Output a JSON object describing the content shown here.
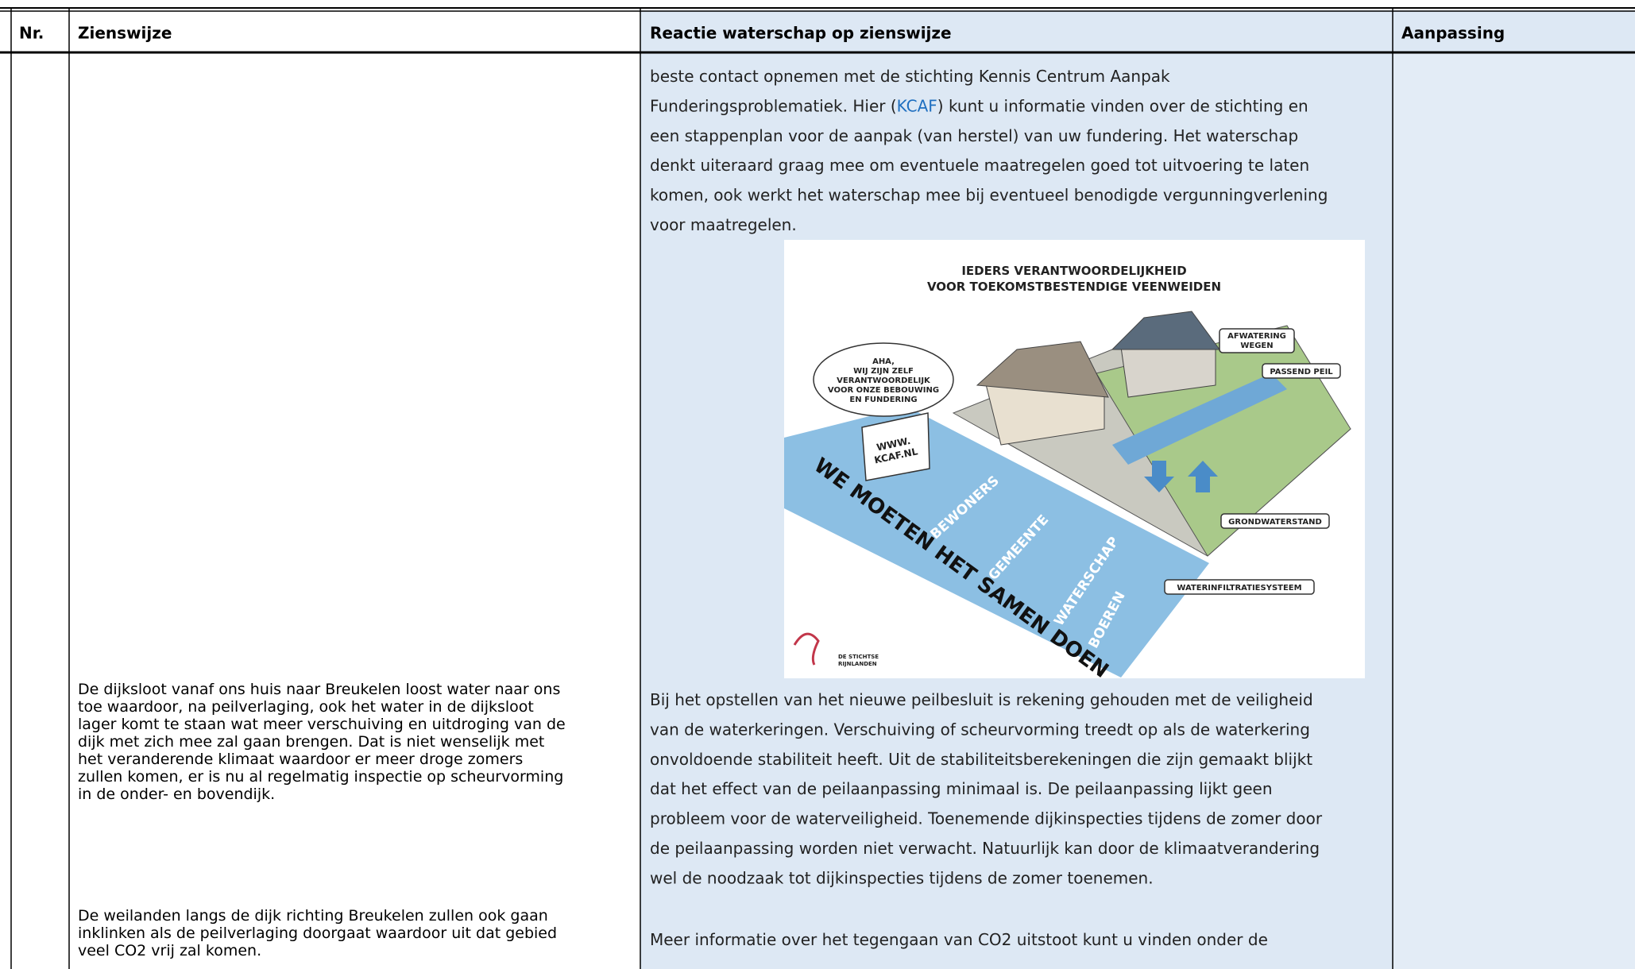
{
  "table": {
    "headers": [
      "Nr.",
      "Zienswijze",
      "Reactie waterschap op zienswijze",
      "Aanpassing"
    ],
    "row": {
      "zienswijze": [
        {
          "lines": [
            "De dijksloot vanaf ons huis naar Breukelen loost water naar ons",
            "toe waardoor, na peilverlaging, ook het water in de dijksloot",
            "lager komt te staan wat meer verschuiving en uitdroging van de",
            "dijk met zich mee zal gaan brengen. Dat is niet wenselijk met",
            "het veranderende klimaat waardoor er meer droge zomers",
            "zullen komen, er is nu al regelmatig inspectie op scheurvorming",
            "in de onder- en bovendijk."
          ]
        },
        {
          "lines": [
            "De weilanden langs de dijk richting Breukelen zullen ook gaan",
            "inklinken als de peilverlaging doorgaat waardoor uit dat gebied",
            "veel CO2 vrij zal komen."
          ]
        }
      ],
      "reactie": [
        {
          "lines": [
            "beste contact opnemen met de stichting Kennis Centrum Aanpak",
            {
              "before": "Funderingsproblematiek. Hier (",
              "link": "KCAF",
              "after": ") kunt u informatie vinden over de stichting en"
            },
            "een stappenplan voor de aanpak (van herstel) van uw fundering. Het waterschap",
            "denkt uiteraard graag mee om eventuele maatregelen goed tot uitvoering te laten",
            "komen, ook werkt het waterschap mee bij eventueel benodigde vergunningverlening",
            "voor maatregelen."
          ]
        },
        {
          "lines": [
            "Bij het opstellen van het nieuwe peilbesluit is rekening gehouden met de veiligheid",
            "van de waterkeringen. Verschuiving of scheurvorming treedt op als de waterkering",
            "onvoldoende stabiliteit heeft. Uit de stabiliteitsberekeningen die zijn gemaakt blijkt",
            "dat het effect van de peilaanpassing minimaal is. De peilaanpassing lijkt geen",
            "probleem voor de waterveiligheid. Toenemende dijkinspecties tijdens de zomer door",
            "de peilaanpassing worden niet verwacht. Natuurlijk kan door de klimaatverandering",
            "wel de noodzaak tot dijkinspecties tijdens de zomer toenemen."
          ]
        },
        {
          "lines": [
            "Meer informatie over het tegengaan van CO2 uitstoot kunt u vinden onder de"
          ]
        }
      ],
      "illustration": {
        "title": [
          "IEDERS VERANTWOORDELIJKHEID",
          "VOOR TOEKOMSTBESTENDIGE VEENWEIDEN"
        ],
        "thought": [
          "AHA,",
          "WIJ ZIJN ZELF",
          "VERANTWOORDELIJK",
          "VOOR ONZE BEBOUWING",
          "EN FUNDERING"
        ],
        "sign": [
          "WWW.",
          "KCAF.NL"
        ],
        "afwatering": [
          "AFWATERING",
          "WEGEN"
        ],
        "peil": "PASSEND PEIL",
        "grondwater": "GRONDWATERSTAND",
        "infiltratie": "WATERINFILTRATIESYSTEEM",
        "slogan": "WE MOETEN HET SAMEN DOEN",
        "roles": [
          "BEWONERS",
          "GEMEENTE",
          "WATERSCHAP",
          "BOEREN"
        ],
        "logo": [
          "DE STICHTSE",
          "RIJNLANDEN"
        ]
      }
    }
  }
}
